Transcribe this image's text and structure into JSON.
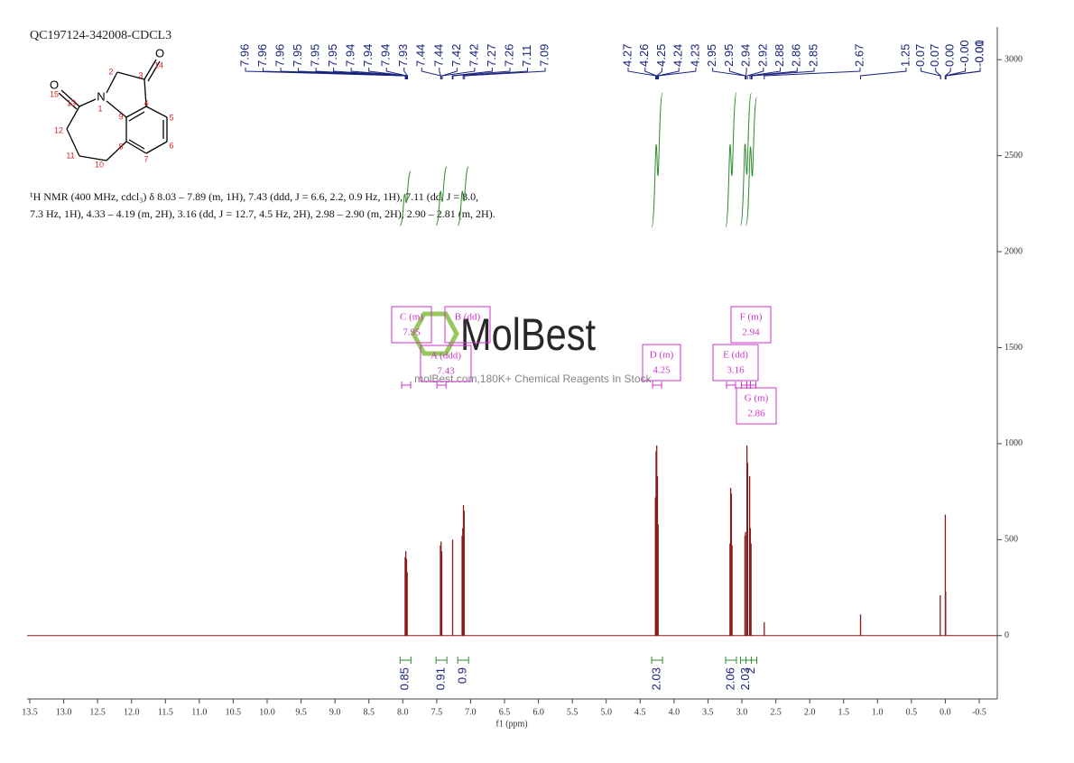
{
  "chart_data": {
    "type": "nmr",
    "title": "QC197124-342008-CDCL3",
    "description": [
      "¹H NMR (400 MHz, cdcl₃) δ 8.03 – 7.89 (m, 1H), 7.43 (ddd, J = 6.6, 2.2, 0.9 Hz, 1H), 7.11 (dd, J = 8.0,",
      "7.3 Hz, 1H), 4.33 – 4.19 (m, 2H), 3.16 (dd, J = 12.7, 4.5 Hz, 2H), 2.98 – 2.90 (m, 2H), 2.90 – 2.81 (m, 2H)."
    ],
    "x_label": "f1 (ppm)",
    "xlim": [
      13.5,
      -0.5
    ],
    "xticks": [
      13.5,
      {
        "value": 13,
        "label": "13.0"
      },
      12.5,
      {
        "value": 12,
        "label": "12.0"
      },
      11.5,
      {
        "value": 11,
        "label": "11.0"
      },
      10.5,
      {
        "value": 10,
        "label": "10.0"
      },
      9.5,
      {
        "value": 9,
        "label": "9.0"
      },
      8.5,
      {
        "value": 8,
        "label": "8.0"
      },
      7.5,
      {
        "value": 7,
        "label": "7.0"
      },
      6.5,
      {
        "value": 6,
        "label": "6.0"
      },
      5.5,
      {
        "value": 5,
        "label": "5.0"
      },
      4.5,
      {
        "value": 4,
        "label": "4.0"
      },
      3.5,
      {
        "value": 3,
        "label": "3.0"
      },
      2.5,
      {
        "value": 2,
        "label": "2.0"
      },
      1.5,
      {
        "value": 1,
        "label": "1.0"
      },
      0.5,
      {
        "value": 0,
        "label": "0.0"
      },
      -0.5
    ],
    "ylim": [
      -330,
      3170
    ],
    "yticks": [
      0,
      500,
      1000,
      1500,
      2000,
      2500,
      3000
    ],
    "color": "#8b1a1a",
    "x": [
      7.965,
      7.955,
      7.945,
      7.935,
      7.445,
      7.435,
      7.425,
      7.265,
      7.125,
      7.115,
      7.105,
      7.095,
      4.275,
      4.265,
      4.255,
      4.245,
      4.235,
      3.175,
      3.165,
      3.155,
      3.145,
      2.955,
      2.945,
      2.925,
      2.915,
      2.885,
      2.875,
      2.865,
      2.67,
      1.25,
      0.075,
      0.0,
      -0.005
    ],
    "values": [
      410,
      440,
      400,
      330,
      470,
      490,
      440,
      500,
      520,
      560,
      680,
      650,
      720,
      960,
      990,
      830,
      580,
      480,
      770,
      740,
      470,
      520,
      540,
      990,
      900,
      830,
      560,
      480,
      70,
      110,
      210,
      630,
      230
    ],
    "peak_labels": [
      "7.96",
      "7.96",
      "7.96",
      "7.95",
      "7.95",
      "7.95",
      "7.94",
      "7.94",
      "7.94",
      "7.93",
      "7.44",
      "7.44",
      "7.42",
      "7.42",
      "7.27",
      "7.26",
      "7.11",
      "7.09",
      "4.27",
      "4.26",
      "4.25",
      "4.24",
      "4.23",
      "2.95",
      "2.95",
      "2.94",
      "2.92",
      "2.88",
      "2.86",
      "2.85",
      "2.67",
      "1.25",
      "0.07",
      "0.07",
      "0.00",
      "-0.00",
      "-0.00",
      "-0.01"
    ],
    "peak_label_color": "#1a237e",
    "integrals": {
      "x": [
        7.96,
        7.43,
        7.11,
        4.25,
        3.16,
        2.94,
        2.86
      ],
      "values": [
        0.85,
        0.91,
        0.9,
        2.03,
        2.06,
        2.03,
        2.0
      ]
    },
    "integral_color": "#2e8b2e",
    "multiplets": [
      {
        "label": "C (m)",
        "shift": 7.95
      },
      {
        "label": "B (dd)"
      },
      {
        "label": "A (ddd)",
        "shift": 7.43
      },
      {
        "label": "D (m)",
        "shift": 4.25
      },
      {
        "label": "E (dd)",
        "shift": 3.16
      },
      {
        "label": "F (m)",
        "shift": 2.94
      },
      {
        "label": "G (m)",
        "shift": 2.86
      }
    ],
    "multiplet_color": "#cc33cc"
  },
  "structure": {
    "labels": [
      "O",
      "N",
      "O",
      "1",
      "2",
      "3",
      "4",
      "5",
      "6",
      "7",
      "8",
      "9",
      "10",
      "11",
      "12",
      "13",
      "14",
      "15"
    ]
  },
  "watermark": {
    "logo": "MolBest",
    "tagline": "molBest.com,180K+ Chemical Reagents In Stock."
  }
}
